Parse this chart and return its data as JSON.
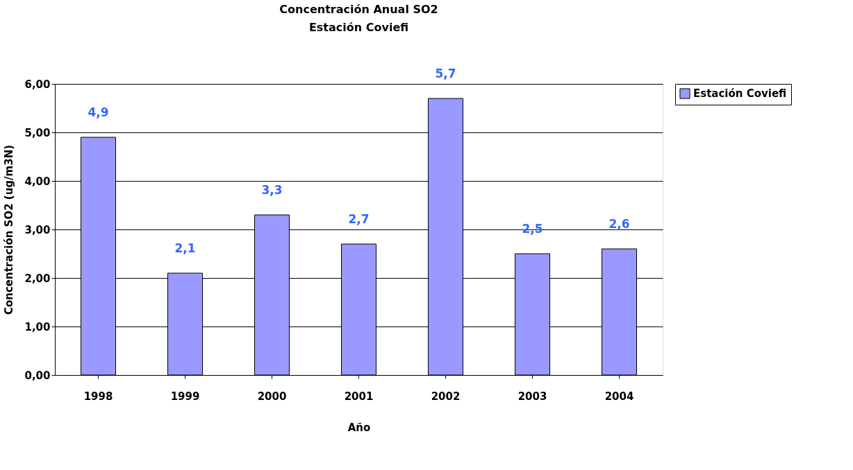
{
  "chart_data": {
    "type": "bar",
    "title": "Concentración Anual SO2",
    "subtitle": "Estación Coviefi",
    "xlabel": "Año",
    "ylabel": "Concentración SO2 (ug/m3N)",
    "categories": [
      "1998",
      "1999",
      "2000",
      "2001",
      "2002",
      "2003",
      "2004"
    ],
    "series": [
      {
        "name": "Estación Coviefi",
        "color": "#9999ff",
        "values": [
          4.9,
          2.1,
          3.3,
          2.7,
          5.7,
          2.5,
          2.6
        ],
        "value_labels": [
          "4,9",
          "2,1",
          "3,3",
          "2,7",
          "5,7",
          "2,5",
          "2,6"
        ]
      }
    ],
    "ylim": [
      0,
      6
    ],
    "yticks": [
      {
        "value": 0,
        "label": "0,00"
      },
      {
        "value": 1,
        "label": "1,00"
      },
      {
        "value": 2,
        "label": "2,00"
      },
      {
        "value": 3,
        "label": "3,00"
      },
      {
        "value": 4,
        "label": "4,00"
      },
      {
        "value": 5,
        "label": "5,00"
      },
      {
        "value": 6,
        "label": "6,00"
      }
    ],
    "grid": "y",
    "legend": "right"
  }
}
